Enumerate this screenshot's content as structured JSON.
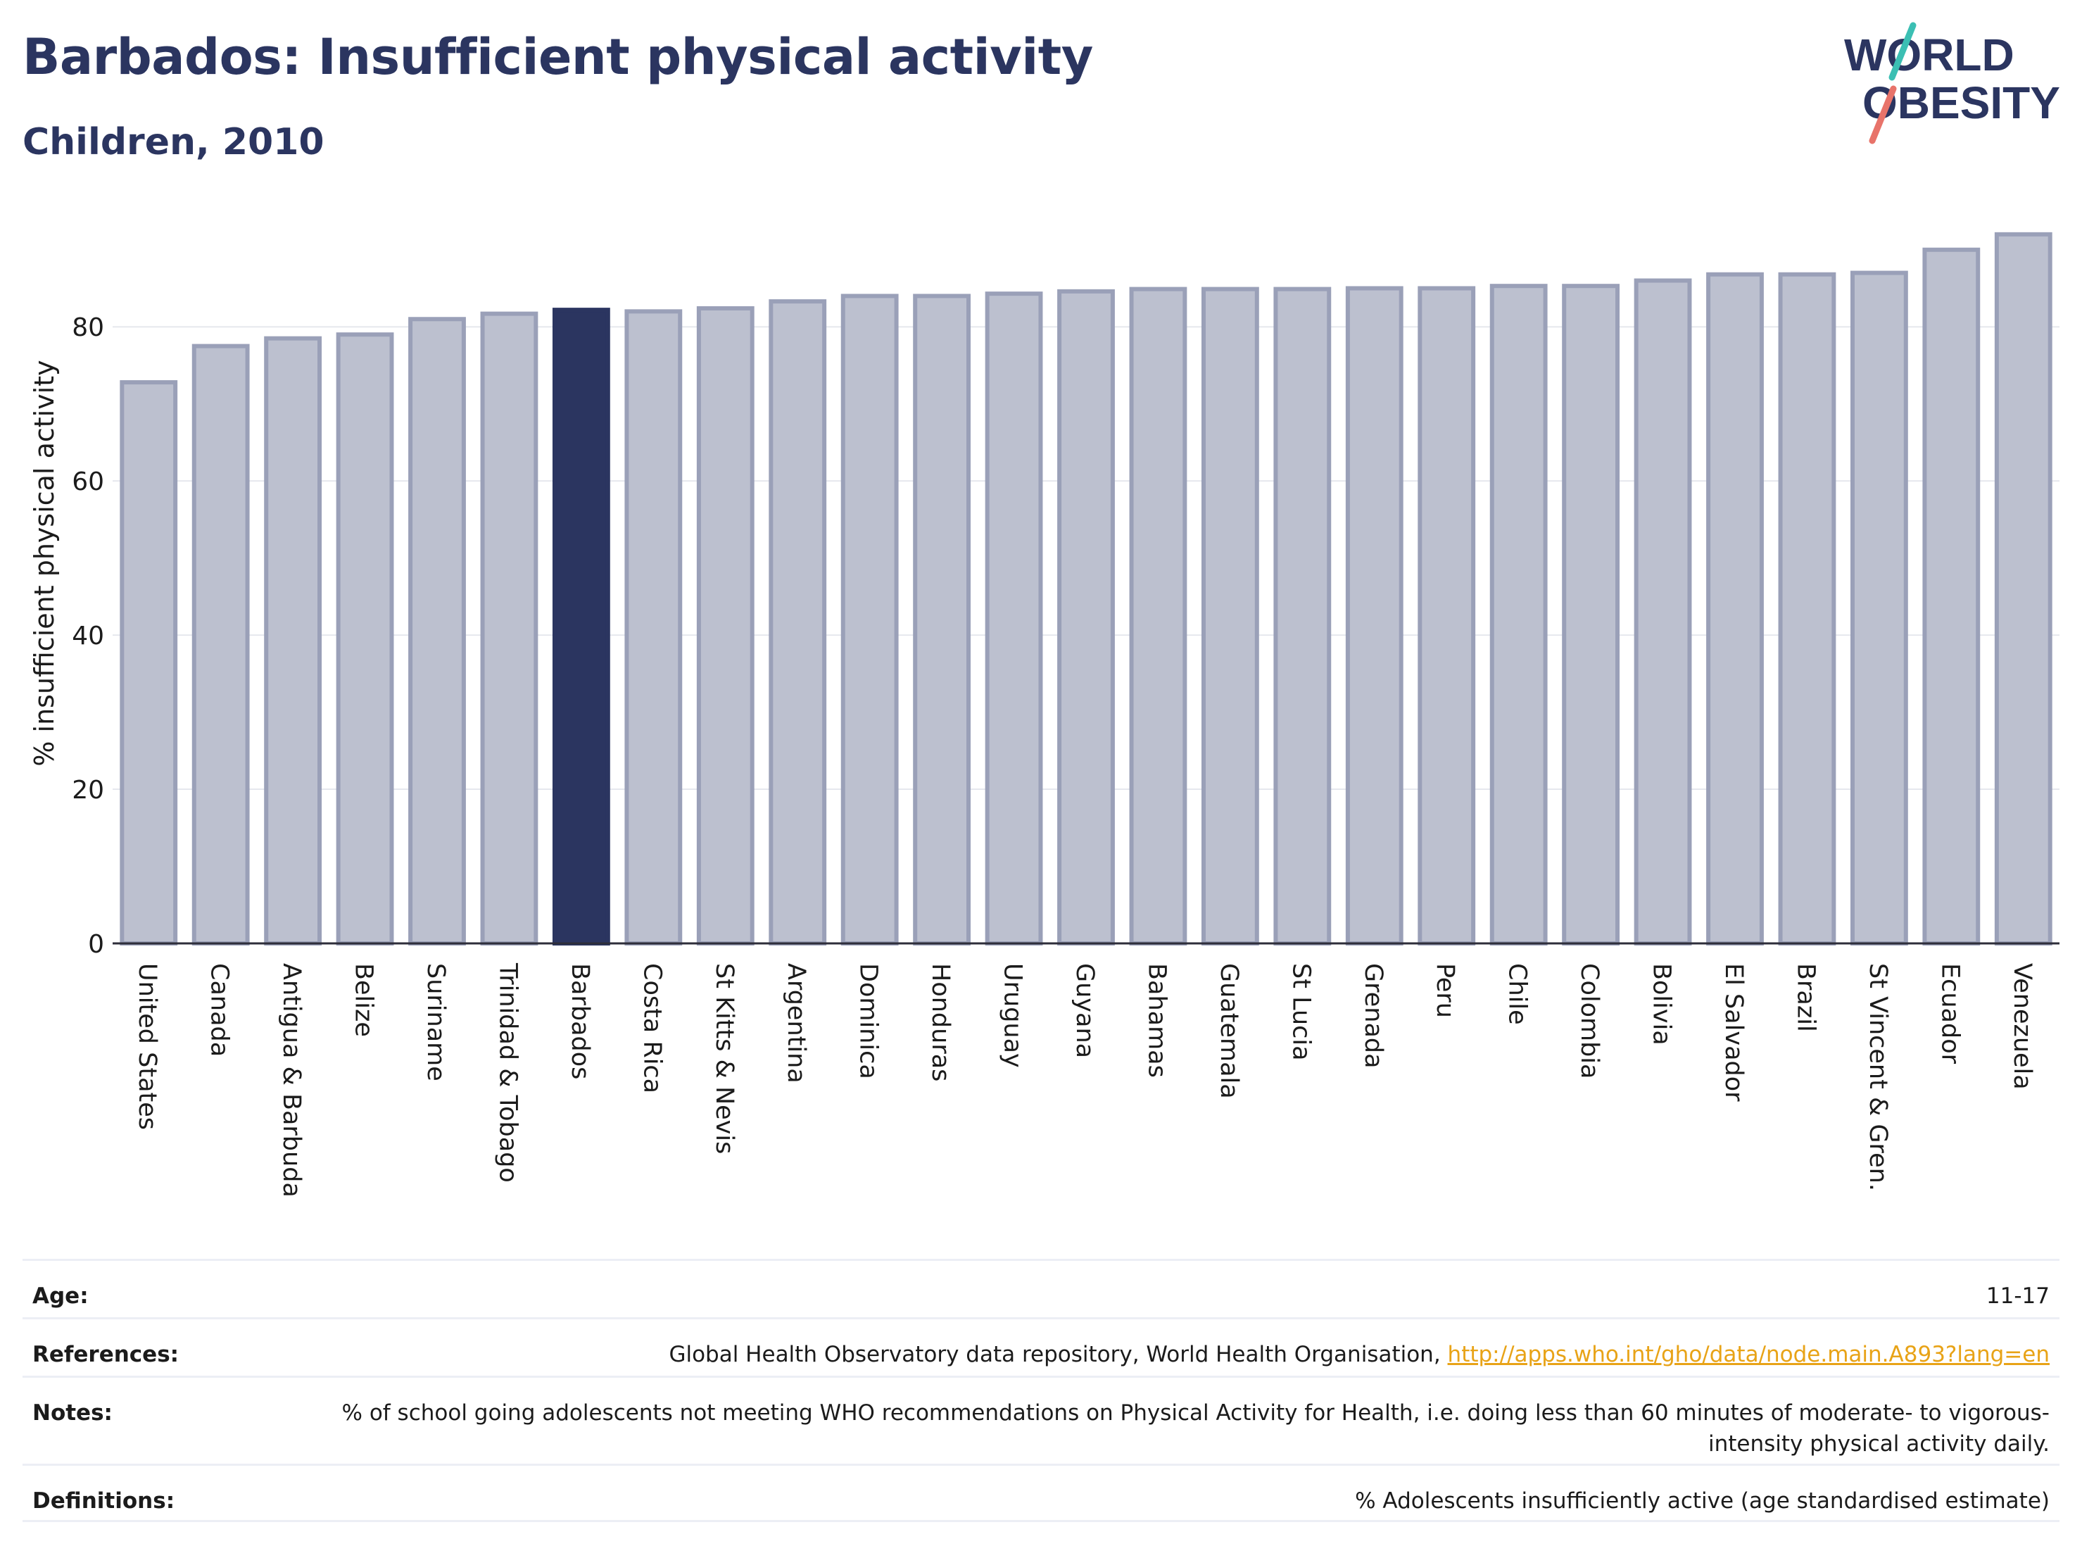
{
  "header": {
    "title": "Barbados: Insufficient physical activity",
    "subtitle": "Children, 2010"
  },
  "logo": {
    "line1": "WORLD",
    "line2": "OBESITY",
    "text_color": "#2b3560",
    "stroke_colors": [
      "#3bbfb3",
      "#e8736a"
    ]
  },
  "chart_data": {
    "type": "bar",
    "categories": [
      "United States",
      "Canada",
      "Antigua & Barbuda",
      "Belize",
      "Suriname",
      "Trinidad & Tobago",
      "Barbados",
      "Costa Rica",
      "St Kitts & Nevis",
      "Argentina",
      "Dominica",
      "Honduras",
      "Uruguay",
      "Guyana",
      "Bahamas",
      "Guatemala",
      "St Lucia",
      "Grenada",
      "Peru",
      "Chile",
      "Colombia",
      "Bolivia",
      "El Salvador",
      "Brazil",
      "St Vincent & Gren.",
      "Ecuador",
      "Venezuela"
    ],
    "values": [
      72.8,
      77.5,
      78.5,
      79.0,
      81.0,
      81.7,
      82.2,
      82.0,
      82.4,
      83.3,
      84.0,
      84.0,
      84.3,
      84.6,
      84.9,
      84.9,
      84.9,
      85.0,
      85.0,
      85.3,
      85.3,
      86.0,
      86.8,
      86.8,
      87.0,
      90.0,
      92.0
    ],
    "highlight": "Barbados",
    "highlight_color": "#2b3560",
    "bar_color": "#bcc0cf",
    "bar_edge_color": "#9aa0b8",
    "ylabel": "% insufficient physical activity",
    "xlabel": "",
    "ylim": [
      0,
      95
    ],
    "yticks": [
      0,
      20,
      40,
      60,
      80
    ],
    "grid": true,
    "legend": "none"
  },
  "info": {
    "age_label": "Age:",
    "age_value": "11-17",
    "references_label": "References:",
    "references_text": "Global Health Observatory data repository, World Health Organisation, ",
    "references_link": "http://apps.who.int/gho/data/node.main.A893?lang=en",
    "notes_label": "Notes:",
    "notes_value": "% of school going adolescents not meeting WHO recommendations on Physical Activity for Health, i.e. doing less than 60 minutes of moderate- to vigorous-intensity physical activity daily.",
    "definitions_label": "Definitions:",
    "definitions_value": "% Adolescents insufficiently active (age standardised estimate)"
  }
}
